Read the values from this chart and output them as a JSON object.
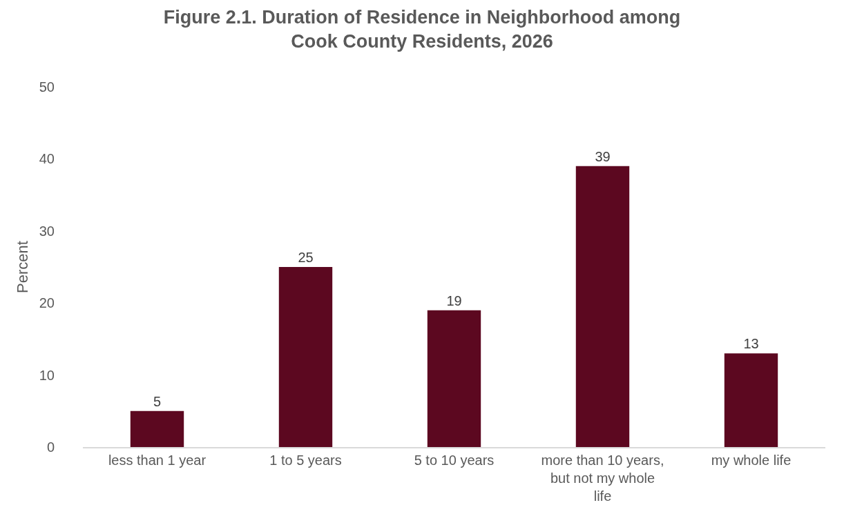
{
  "chart_data": {
    "type": "bar",
    "title": "Figure 2.1. Duration of Residence in Neighborhood among Cook County Residents, 2026",
    "ylabel": "Percent",
    "categories": [
      "less than 1 year",
      "1 to 5 years",
      "5 to 10 years",
      "more than 10 years, but not my whole life",
      "my whole life"
    ],
    "values": [
      5,
      25,
      19,
      39,
      13
    ],
    "color": "#5c0820",
    "ylim": [
      0,
      50
    ],
    "yticks": [
      0,
      10,
      20,
      30,
      40,
      50
    ],
    "grid": false,
    "data_labels": true
  }
}
